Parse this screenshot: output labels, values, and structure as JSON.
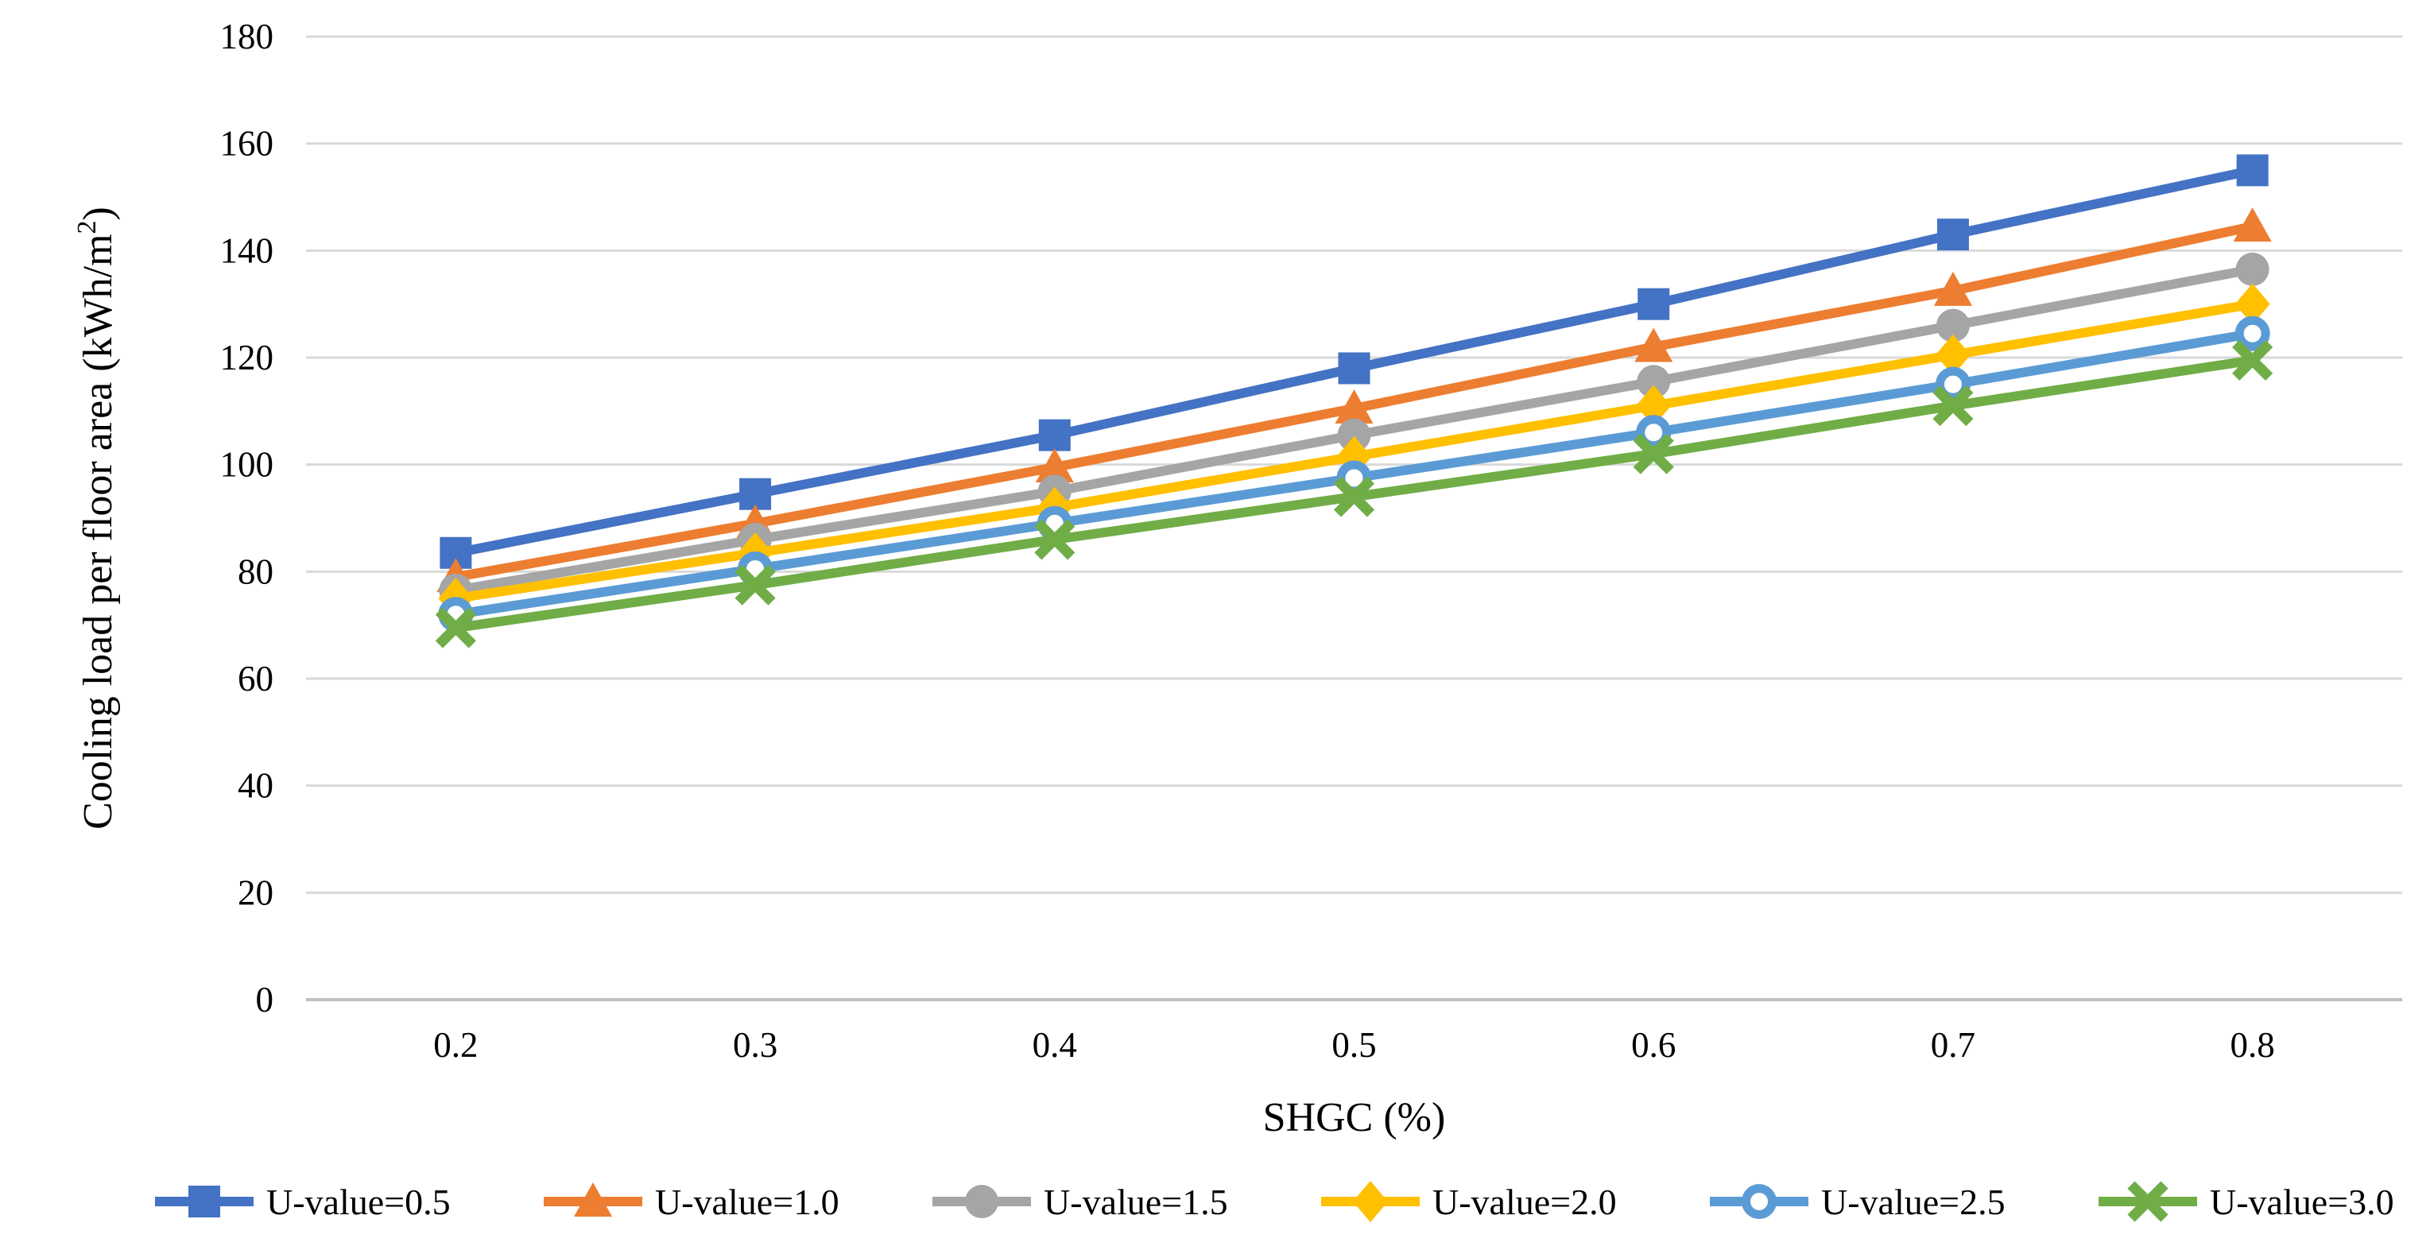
{
  "figure": {
    "background": "#ffffff"
  },
  "chart_data": {
    "type": "line",
    "xlabel": "SHGC (%)",
    "ylabel": "Cooling load per floor area (kWh/m²)",
    "x_categories": [
      "0.2",
      "0.3",
      "0.4",
      "0.5",
      "0.6",
      "0.7",
      "0.8"
    ],
    "ylim": [
      0,
      180
    ],
    "y_ticks": [
      0,
      20,
      40,
      60,
      80,
      100,
      120,
      140,
      160,
      180
    ],
    "grid": "horizontal",
    "legend_position": "bottom",
    "gridline_color": "#D9D9D9",
    "axis_color": "#BFBFBF",
    "text_color": "#000000",
    "series": [
      {
        "name": "U-value=0.5",
        "color": "#4472C4",
        "marker": "square",
        "values": [
          83.5,
          94.5,
          105.5,
          118,
          130,
          143,
          155
        ]
      },
      {
        "name": "U-value=1.0",
        "color": "#ED7D31",
        "marker": "triangle",
        "values": [
          79,
          89,
          99.5,
          110.5,
          122,
          132.5,
          144.5
        ]
      },
      {
        "name": "U-value=1.5",
        "color": "#A5A5A5",
        "marker": "circle",
        "values": [
          76.5,
          86,
          95,
          105.5,
          115.5,
          126,
          136.5
        ]
      },
      {
        "name": "U-value=2.0",
        "color": "#FFC000",
        "marker": "diamond",
        "values": [
          75,
          83.5,
          92,
          101.5,
          111,
          120.5,
          130
        ]
      },
      {
        "name": "U-value=2.5",
        "color": "#5B9BD5",
        "marker": "open-circle",
        "values": [
          72,
          80.5,
          89,
          97.5,
          106,
          115,
          124.5
        ]
      },
      {
        "name": "U-value=3.0",
        "color": "#70AD47",
        "marker": "x",
        "values": [
          69.5,
          77.5,
          86,
          94,
          102,
          111,
          119.5
        ]
      }
    ]
  }
}
